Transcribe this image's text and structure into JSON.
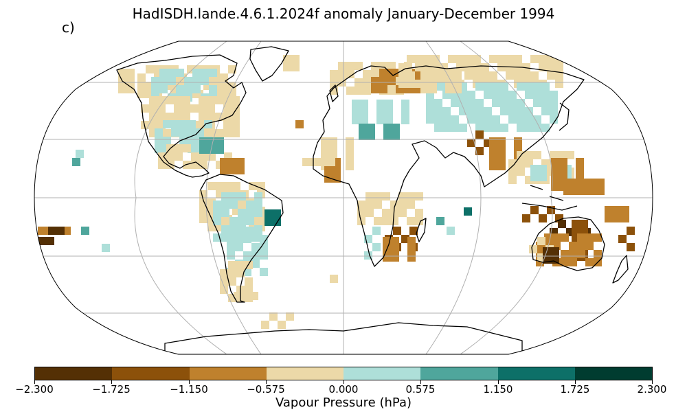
{
  "title": "HadISDH.lande.4.6.1.2024f anomaly January-December 1994",
  "panel_label": "c)",
  "colorbar": {
    "label": "Vapour Pressure (hPa)",
    "ticks": [
      "−2.300",
      "−1.725",
      "−1.150",
      "−0.575",
      "0.000",
      "0.575",
      "1.150",
      "1.725",
      "2.300"
    ],
    "colors": [
      "#543005",
      "#8c510a",
      "#bf812d",
      "#dfc27d",
      "#f6e8c3",
      "#c7eae5",
      "#80cdc1",
      "#35978f",
      "#01665e",
      "#003c30"
    ]
  },
  "map": {
    "projection": "Robinson",
    "gridlines": true,
    "land_outline_color": "#000000",
    "palette": {
      "dark_brown": "#543005",
      "brown": "#8c510a",
      "light_brown": "#bf812d",
      "tan": "#dfc27d",
      "pale_tan": "#ecd9a8",
      "pale_teal": "#aedfd9",
      "teal": "#4fa69c",
      "dark_teal": "#0d7068"
    }
  }
}
